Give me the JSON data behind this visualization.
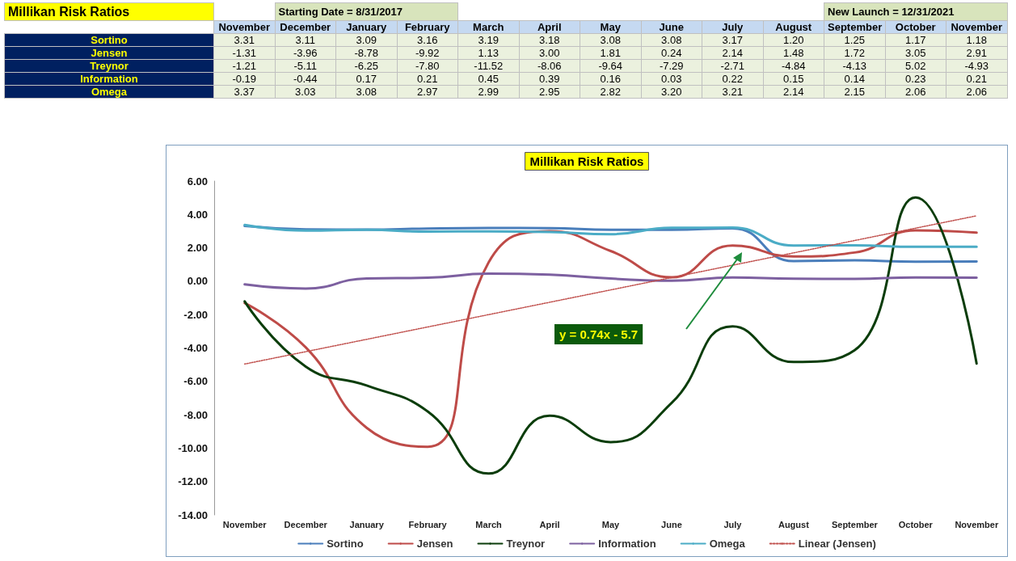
{
  "chart_data": {
    "type": "line",
    "title": "Millikan Risk Ratios",
    "annotations": [
      "Starting Date = 8/31/2017",
      "New Launch = 12/31/2021",
      "y = 0.74x - 5.7"
    ],
    "categories": [
      "November",
      "December",
      "January",
      "February",
      "March",
      "April",
      "May",
      "June",
      "July",
      "August",
      "September",
      "October",
      "November"
    ],
    "series": [
      {
        "name": "Sortino",
        "color": "#4a7ebb",
        "values": [
          3.31,
          3.11,
          3.09,
          3.16,
          3.19,
          3.18,
          3.08,
          3.08,
          3.17,
          1.2,
          1.25,
          1.17,
          1.18
        ],
        "value_labels": [
          "3.31",
          "3.11",
          "3.09",
          "3.16",
          "3.19",
          "3.18",
          "3.08",
          "3.08",
          "3.17",
          "1.20",
          "1.25",
          "1.17",
          "1.18"
        ]
      },
      {
        "name": "Jensen",
        "color": "#be4b48",
        "values": [
          -1.31,
          -3.96,
          -8.78,
          -9.92,
          1.13,
          3.0,
          1.81,
          0.24,
          2.14,
          1.48,
          1.72,
          3.05,
          2.91
        ],
        "value_labels": [
          "-1.31",
          "-3.96",
          "-8.78",
          "-9.92",
          "1.13",
          "3.00",
          "1.81",
          "0.24",
          "2.14",
          "1.48",
          "1.72",
          "3.05",
          "2.91"
        ]
      },
      {
        "name": "Treynor",
        "color": "#0b3d0b",
        "values": [
          -1.21,
          -5.11,
          -6.25,
          -7.8,
          -11.52,
          -8.06,
          -9.64,
          -7.29,
          -2.71,
          -4.84,
          -4.13,
          5.02,
          -4.93
        ],
        "value_labels": [
          "-1.21",
          "-5.11",
          "-6.25",
          "-7.80",
          "-11.52",
          "-8.06",
          "-9.64",
          "-7.29",
          "-2.71",
          "-4.84",
          "-4.13",
          "5.02",
          "-4.93"
        ]
      },
      {
        "name": "Information",
        "color": "#7d60a0",
        "values": [
          -0.19,
          -0.44,
          0.17,
          0.21,
          0.45,
          0.39,
          0.16,
          0.03,
          0.22,
          0.15,
          0.14,
          0.23,
          0.21
        ],
        "value_labels": [
          "-0.19",
          "-0.44",
          "0.17",
          "0.21",
          "0.45",
          "0.39",
          "0.16",
          "0.03",
          "0.22",
          "0.15",
          "0.14",
          "0.23",
          "0.21"
        ]
      },
      {
        "name": "Omega",
        "color": "#4bacc6",
        "values": [
          3.37,
          3.03,
          3.08,
          2.97,
          2.99,
          2.95,
          2.82,
          3.2,
          3.21,
          2.14,
          2.15,
          2.06,
          2.06
        ],
        "value_labels": [
          "3.37",
          "3.03",
          "3.08",
          "2.97",
          "2.99",
          "2.95",
          "2.82",
          "3.20",
          "3.21",
          "2.14",
          "2.15",
          "2.06",
          "2.06"
        ]
      },
      {
        "name": "Linear (Jensen)",
        "color": "#c0504d",
        "line_style": "dotted",
        "values": [
          -4.96,
          null,
          null,
          null,
          null,
          null,
          null,
          null,
          null,
          null,
          null,
          null,
          3.92
        ]
      }
    ],
    "ylim": [
      -14,
      6
    ],
    "yticks": [
      {
        "value": -14,
        "label": "-14.00"
      },
      {
        "value": -12,
        "label": "-12.00"
      },
      {
        "value": -10,
        "label": "-10.00"
      },
      {
        "value": -8,
        "label": "-8.00"
      },
      {
        "value": -6,
        "label": "-6.00"
      },
      {
        "value": -4,
        "label": "-4.00"
      },
      {
        "value": -2,
        "label": "-2.00"
      },
      {
        "value": 0,
        "label": "0.00"
      },
      {
        "value": 2,
        "label": "2.00"
      },
      {
        "value": 4,
        "label": "4.00"
      },
      {
        "value": 6,
        "label": "6.00"
      }
    ],
    "legend": "bottom",
    "marker": "none",
    "line_style": "solid"
  }
}
